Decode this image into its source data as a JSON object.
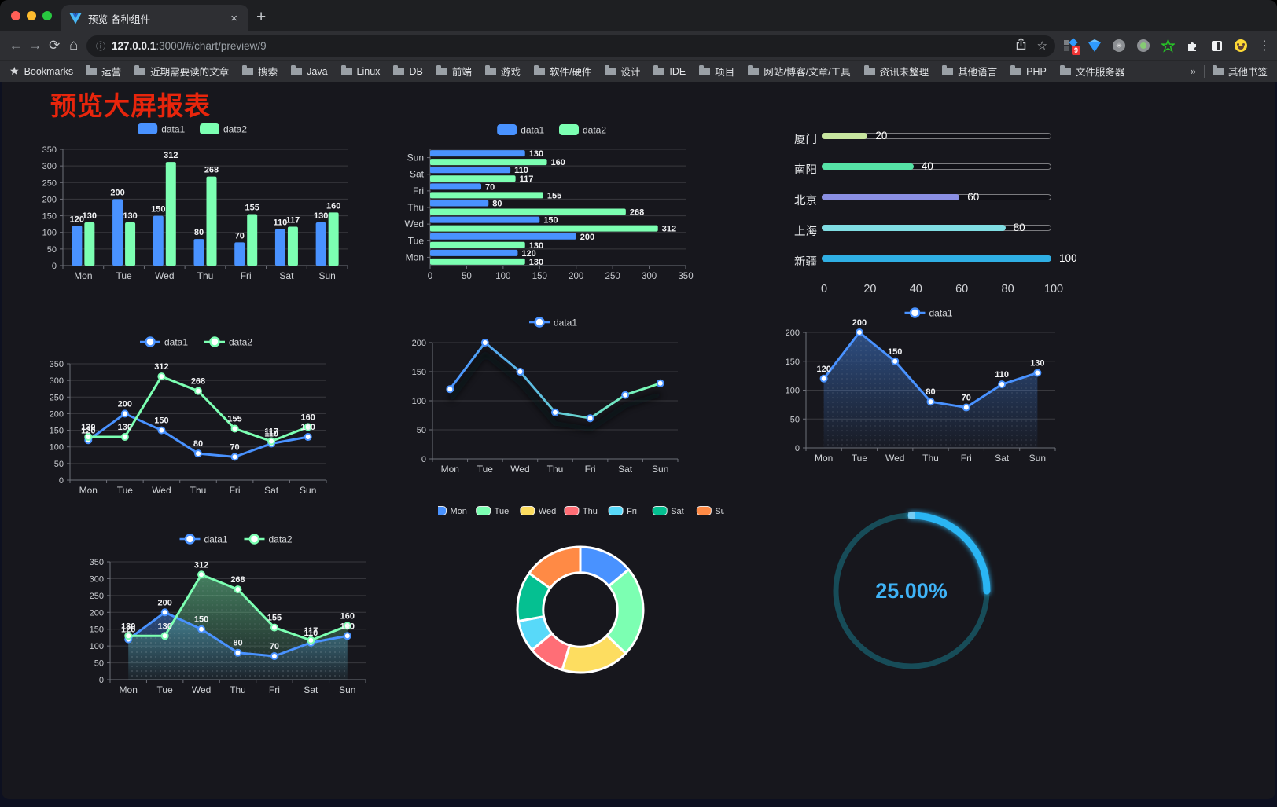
{
  "browser": {
    "traffic_lights": [
      "#ff5f57",
      "#febc2e",
      "#28c840"
    ],
    "tab": {
      "title": "预览-各种组件",
      "close_glyph": "×",
      "new_tab_glyph": "+"
    },
    "url": {
      "host": "127.0.0.1",
      "rest": ":3000/#/chart/preview/9"
    },
    "extensions_badge": "9",
    "bookmarks_bar": {
      "bookmarks_label": "Bookmarks",
      "folders": [
        "运营",
        "近期需要读的文章",
        "搜索",
        "Java",
        "Linux",
        "DB",
        "前端",
        "游戏",
        "软件/硬件",
        "设计",
        "IDE",
        "项目",
        "网站/博客/文章/工具",
        "资讯未整理",
        "其他语言",
        "PHP",
        "文件服务器"
      ],
      "overflow_glyph": "»",
      "other_bookmarks": "其他书签"
    }
  },
  "page": {
    "title": "预览大屏报表",
    "title_color": "#e8250c"
  },
  "chart_data": [
    {
      "name": "grouped-bar-chart",
      "type": "bar",
      "categories": [
        "Mon",
        "Tue",
        "Wed",
        "Thu",
        "Fri",
        "Sat",
        "Sun"
      ],
      "series": [
        {
          "name": "data1",
          "color": "#4992ff",
          "values": [
            120,
            200,
            150,
            80,
            70,
            110,
            130
          ]
        },
        {
          "name": "data2",
          "color": "#7cffb2",
          "values": [
            130,
            130,
            312,
            268,
            155,
            117,
            160
          ]
        }
      ],
      "ylim": [
        0,
        350
      ],
      "ytick": 50,
      "legend_position": "top"
    },
    {
      "name": "horizontal-bar-chart",
      "type": "bar",
      "orientation": "horizontal",
      "categories": [
        "Mon",
        "Tue",
        "Wed",
        "Thu",
        "Fri",
        "Sat",
        "Sun"
      ],
      "series": [
        {
          "name": "data1",
          "color": "#4992ff",
          "values": [
            120,
            200,
            150,
            80,
            70,
            110,
            130
          ]
        },
        {
          "name": "data2",
          "color": "#7cffb2",
          "values": [
            130,
            130,
            312,
            268,
            155,
            117,
            160
          ]
        }
      ],
      "xlim": [
        0,
        350
      ],
      "xtick": 50,
      "legend_position": "top"
    },
    {
      "name": "capsule-progress-chart",
      "type": "bar",
      "orientation": "horizontal",
      "subtype": "capsule",
      "items": [
        {
          "label": "厦门",
          "value": 20,
          "color": "#c8e6a0"
        },
        {
          "label": "南阳",
          "value": 40,
          "color": "#55e3a6"
        },
        {
          "label": "北京",
          "value": 60,
          "color": "#8a8fe3"
        },
        {
          "label": "上海",
          "value": 80,
          "color": "#80dde3"
        },
        {
          "label": "新疆",
          "value": 100,
          "color": "#2fafe4"
        }
      ],
      "xlim": [
        0,
        100
      ],
      "xticks": [
        0,
        20,
        40,
        60,
        80,
        100
      ]
    },
    {
      "name": "two-line-chart",
      "type": "line",
      "categories": [
        "Mon",
        "Tue",
        "Wed",
        "Thu",
        "Fri",
        "Sat",
        "Sun"
      ],
      "series": [
        {
          "name": "data1",
          "color": "#4992ff",
          "values": [
            120,
            200,
            150,
            80,
            70,
            110,
            130
          ]
        },
        {
          "name": "data2",
          "color": "#7cffb2",
          "values": [
            130,
            130,
            312,
            268,
            155,
            117,
            160
          ]
        }
      ],
      "ylim": [
        0,
        350
      ],
      "ytick": 50,
      "labels": true
    },
    {
      "name": "gradient-line-chart",
      "type": "line",
      "categories": [
        "Mon",
        "Tue",
        "Wed",
        "Thu",
        "Fri",
        "Sat",
        "Sun"
      ],
      "series": [
        {
          "name": "data1",
          "gradient": [
            "#4992ff",
            "#7cffb2"
          ],
          "color": "#4992ff",
          "values": [
            120,
            200,
            150,
            80,
            70,
            110,
            130
          ]
        }
      ],
      "ylim": [
        0,
        200
      ],
      "ytick": 50,
      "labels": false,
      "shadow": true
    },
    {
      "name": "area-line-chart",
      "type": "area",
      "categories": [
        "Mon",
        "Tue",
        "Wed",
        "Thu",
        "Fri",
        "Sat",
        "Sun"
      ],
      "series": [
        {
          "name": "data1",
          "color": "#4992ff",
          "values": [
            120,
            200,
            150,
            80,
            70,
            110,
            130
          ],
          "area": true
        }
      ],
      "ylim": [
        0,
        200
      ],
      "ytick": 50,
      "labels": true
    },
    {
      "name": "two-area-chart",
      "type": "area",
      "categories": [
        "Mon",
        "Tue",
        "Wed",
        "Thu",
        "Fri",
        "Sat",
        "Sun"
      ],
      "series": [
        {
          "name": "data1",
          "color": "#4992ff",
          "values": [
            120,
            200,
            150,
            80,
            70,
            110,
            130
          ],
          "area": true
        },
        {
          "name": "data2",
          "color": "#7cffb2",
          "values": [
            130,
            130,
            312,
            268,
            155,
            117,
            160
          ],
          "area": true
        }
      ],
      "ylim": [
        0,
        350
      ],
      "ytick": 50,
      "labels": true
    },
    {
      "name": "donut-chart",
      "type": "pie",
      "inner_radius_ratio": 0.59,
      "items": [
        {
          "label": "Mon",
          "value": 120,
          "color": "#4992ff"
        },
        {
          "label": "Tue",
          "value": 200,
          "color": "#7cffb2"
        },
        {
          "label": "Wed",
          "value": 150,
          "color": "#fddd60"
        },
        {
          "label": "Thu",
          "value": 80,
          "color": "#ff6e76"
        },
        {
          "label": "Fri",
          "value": 70,
          "color": "#58d9f9"
        },
        {
          "label": "Sat",
          "value": 110,
          "color": "#05c091"
        },
        {
          "label": "Sun",
          "value": 130,
          "color": "#ff8a45"
        }
      ]
    },
    {
      "name": "gauge-chart",
      "type": "gauge",
      "value": 25,
      "label": "25.00%",
      "color": "#2ab5f3",
      "track_color": "#174c58",
      "text_color": "#3fb3f6"
    }
  ]
}
